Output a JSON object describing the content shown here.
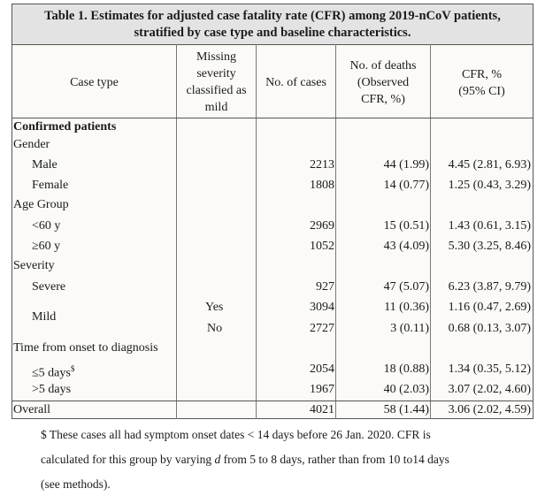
{
  "table": {
    "title_line1": "Table 1. Estimates for adjusted case fatality rate (CFR) among 2019-nCoV patients,",
    "title_line2": "stratified by case type and baseline characteristics.",
    "headers": {
      "case_type": "Case type",
      "missing_lines": [
        "Missing",
        "severity",
        "classified as",
        "mild"
      ],
      "cases": "No. of cases",
      "deaths_lines": [
        "No. of deaths",
        "(Observed",
        "CFR, %)"
      ],
      "cfr_lines": [
        "CFR, %",
        "(95% CI)"
      ]
    },
    "section_confirmed": "Confirmed patients",
    "groups": {
      "gender": "Gender",
      "age": "Age Group",
      "severity": "Severity",
      "time": "Time from onset to diagnosis"
    },
    "rows": {
      "male": {
        "label": "Male",
        "flag": "",
        "cases": "2213",
        "deaths": "44 (1.99)",
        "cfr": "4.45 (2.81, 6.93)"
      },
      "female": {
        "label": "Female",
        "flag": "",
        "cases": "1808",
        "deaths": "14 (0.77)",
        "cfr": "1.25 (0.43, 3.29)"
      },
      "lt60": {
        "label": "<60 y",
        "flag": "",
        "cases": "2969",
        "deaths": "15 (0.51)",
        "cfr": "1.43 (0.61, 3.15)"
      },
      "ge60": {
        "label": "≥60 y",
        "flag": "",
        "cases": "1052",
        "deaths": "43 (4.09)",
        "cfr": "5.30 (3.25, 8.46)"
      },
      "severe": {
        "label": "Severe",
        "flag": "",
        "cases": "927",
        "deaths": "47 (5.07)",
        "cfr": "6.23 (3.87, 9.79)"
      },
      "mild_yes": {
        "label": "Mild",
        "flag": "Yes",
        "cases": "3094",
        "deaths": "11 (0.36)",
        "cfr": "1.16 (0.47, 2.69)"
      },
      "mild_no": {
        "label": "",
        "flag": "No",
        "cases": "2727",
        "deaths": "3 (0.11)",
        "cfr": "0.68 (0.13, 3.07)"
      },
      "le5": {
        "label": "≤5 days",
        "sup": "$",
        "flag": "",
        "cases": "2054",
        "deaths": "18 (0.88)",
        "cfr": "1.34 (0.35, 5.12)"
      },
      "gt5": {
        "label": ">5 days",
        "flag": "",
        "cases": "1967",
        "deaths": "40 (2.03)",
        "cfr": "3.07 (2.02, 4.60)"
      },
      "overall": {
        "label": "Overall",
        "flag": "",
        "cases": "4021",
        "deaths": "58 (1.44)",
        "cfr": "3.06 (2.02, 4.59)"
      }
    }
  },
  "footnote": {
    "line1": "$ These cases all had symptom onset dates < 14 days before 26 Jan. 2020. CFR is",
    "line2_a": "calculated for this group by varying ",
    "line2_var": "d",
    "line2_b": " from 5 to 8 days, rather than from 10 to14 days",
    "line3": "(see methods)."
  }
}
